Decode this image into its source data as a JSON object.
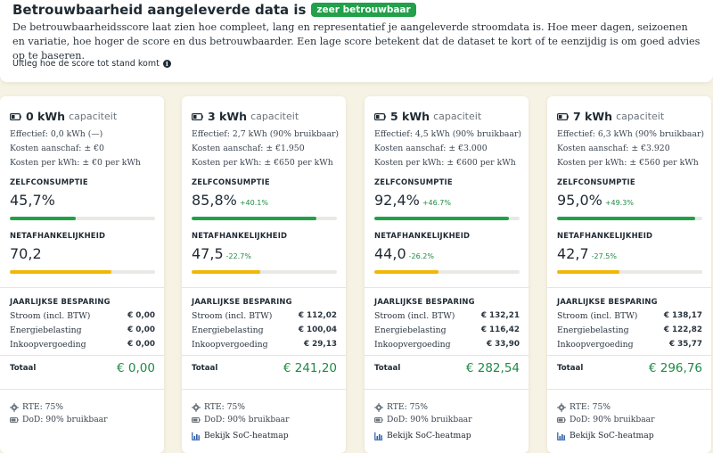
{
  "header": {
    "title": "Betrouwbaarheid aangeleverde data is",
    "badge": "zeer betrouwbaar",
    "description": "De betrouwbaarheidsscore laat zien hoe compleet, lang en representatief je aangeleverde stroomdata is. Hoe meer dagen, seizoenen en variatie, hoe hoger de score en dus betrouwbaarder. Een lage score betekent dat de dataset te kort of te eenzijdig is om goed advies op te baseren.",
    "explain_link": "Uitleg hoe de score tot stand komt",
    "badge_color": "#22a04a"
  },
  "labels": {
    "capacity_suffix": "capaciteit",
    "self_consumption": "ZELFCONSUMPTIE",
    "grid_dependency": "NETAFHANKELIJKHEID",
    "annual_savings": "JAARLIJKSE BESPARING",
    "electricity": "Stroom (incl. BTW)",
    "energy_tax": "Energiebelasting",
    "purchase_fee": "Inkoopvergoeding",
    "total": "Totaal"
  },
  "colors": {
    "green_bar": "#22a04a",
    "yellow_bar": "#f2b705",
    "accent_green": "#1f8a45"
  },
  "cards": [
    {
      "capacity": "0 kWh",
      "effective": "Effectief: 0,0 kWh (—)",
      "cost": "Kosten aanschaf: ± €0",
      "cost_per_kwh": "Kosten per kWh: ± €0 per kWh",
      "self_consumption": "45,7%",
      "self_consumption_fraction": 0.457,
      "self_delta": "",
      "grid_dependency": "70,2",
      "grid_fraction": 0.702,
      "grid_delta": "",
      "electricity": "€ 0,00",
      "energy_tax": "€ 0,00",
      "purchase_fee": "€ 0,00",
      "total": "€ 0,00",
      "rte": "RTE: 75%",
      "dod": "DoD: 90% bruikbaar",
      "heatmap": ""
    },
    {
      "capacity": "3 kWh",
      "effective": "Effectief: 2,7 kWh (90% bruikbaar)",
      "cost": "Kosten aanschaf: ± €1.950",
      "cost_per_kwh": "Kosten per kWh: ± €650 per kWh",
      "self_consumption": "85,8%",
      "self_consumption_fraction": 0.858,
      "self_delta": "+40.1%",
      "grid_dependency": "47,5",
      "grid_fraction": 0.475,
      "grid_delta": "-22.7%",
      "electricity": "€ 112,02",
      "energy_tax": "€ 100,04",
      "purchase_fee": "€ 29,13",
      "total": "€ 241,20",
      "rte": "RTE: 75%",
      "dod": "DoD: 90% bruikbaar",
      "heatmap": "Bekijk SoC-heatmap"
    },
    {
      "capacity": "5 kWh",
      "effective": "Effectief: 4,5 kWh (90% bruikbaar)",
      "cost": "Kosten aanschaf: ± €3.000",
      "cost_per_kwh": "Kosten per kWh: ± €600 per kWh",
      "self_consumption": "92,4%",
      "self_consumption_fraction": 0.924,
      "self_delta": "+46.7%",
      "grid_dependency": "44,0",
      "grid_fraction": 0.44,
      "grid_delta": "-26.2%",
      "electricity": "€ 132,21",
      "energy_tax": "€ 116,42",
      "purchase_fee": "€ 33,90",
      "total": "€ 282,54",
      "rte": "RTE: 75%",
      "dod": "DoD: 90% bruikbaar",
      "heatmap": "Bekijk SoC-heatmap"
    },
    {
      "capacity": "7 kWh",
      "effective": "Effectief: 6,3 kWh (90% bruikbaar)",
      "cost": "Kosten aanschaf: ± €3.920",
      "cost_per_kwh": "Kosten per kWh: ± €560 per kWh",
      "self_consumption": "95,0%",
      "self_consumption_fraction": 0.95,
      "self_delta": "+49.3%",
      "grid_dependency": "42,7",
      "grid_fraction": 0.427,
      "grid_delta": "-27.5%",
      "electricity": "€ 138,17",
      "energy_tax": "€ 122,82",
      "purchase_fee": "€ 35,77",
      "total": "€ 296,76",
      "rte": "RTE: 75%",
      "dod": "DoD: 90% bruikbaar",
      "heatmap": "Bekijk SoC-heatmap"
    }
  ]
}
